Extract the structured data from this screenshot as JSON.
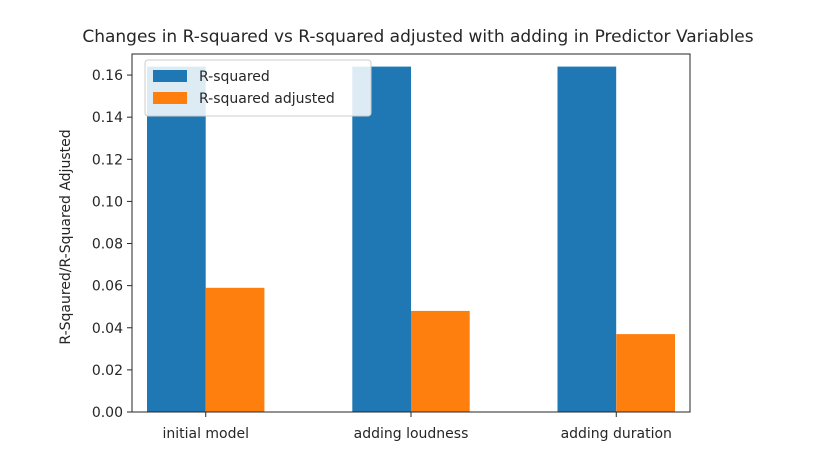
{
  "chart_data": {
    "type": "bar",
    "title": "Changes in R-squared vs R-squared adjusted with adding in Predictor Variables",
    "xlabel": "",
    "ylabel": "R-Sqaured/R-Squared Adjusted",
    "categories": [
      "initial model",
      "adding loudness",
      "adding duration"
    ],
    "series": [
      {
        "name": "R-squared",
        "values": [
          0.164,
          0.164,
          0.164
        ],
        "color": "#1f77b4"
      },
      {
        "name": "R-squared adjusted",
        "values": [
          0.059,
          0.048,
          0.037
        ],
        "color": "#ff7f0e"
      }
    ],
    "ylim": [
      0,
      0.17
    ],
    "yticks": [
      "0.00",
      "0.02",
      "0.04",
      "0.06",
      "0.08",
      "0.10",
      "0.12",
      "0.14",
      "0.16"
    ],
    "grid": false,
    "legend_position": "top-left"
  }
}
